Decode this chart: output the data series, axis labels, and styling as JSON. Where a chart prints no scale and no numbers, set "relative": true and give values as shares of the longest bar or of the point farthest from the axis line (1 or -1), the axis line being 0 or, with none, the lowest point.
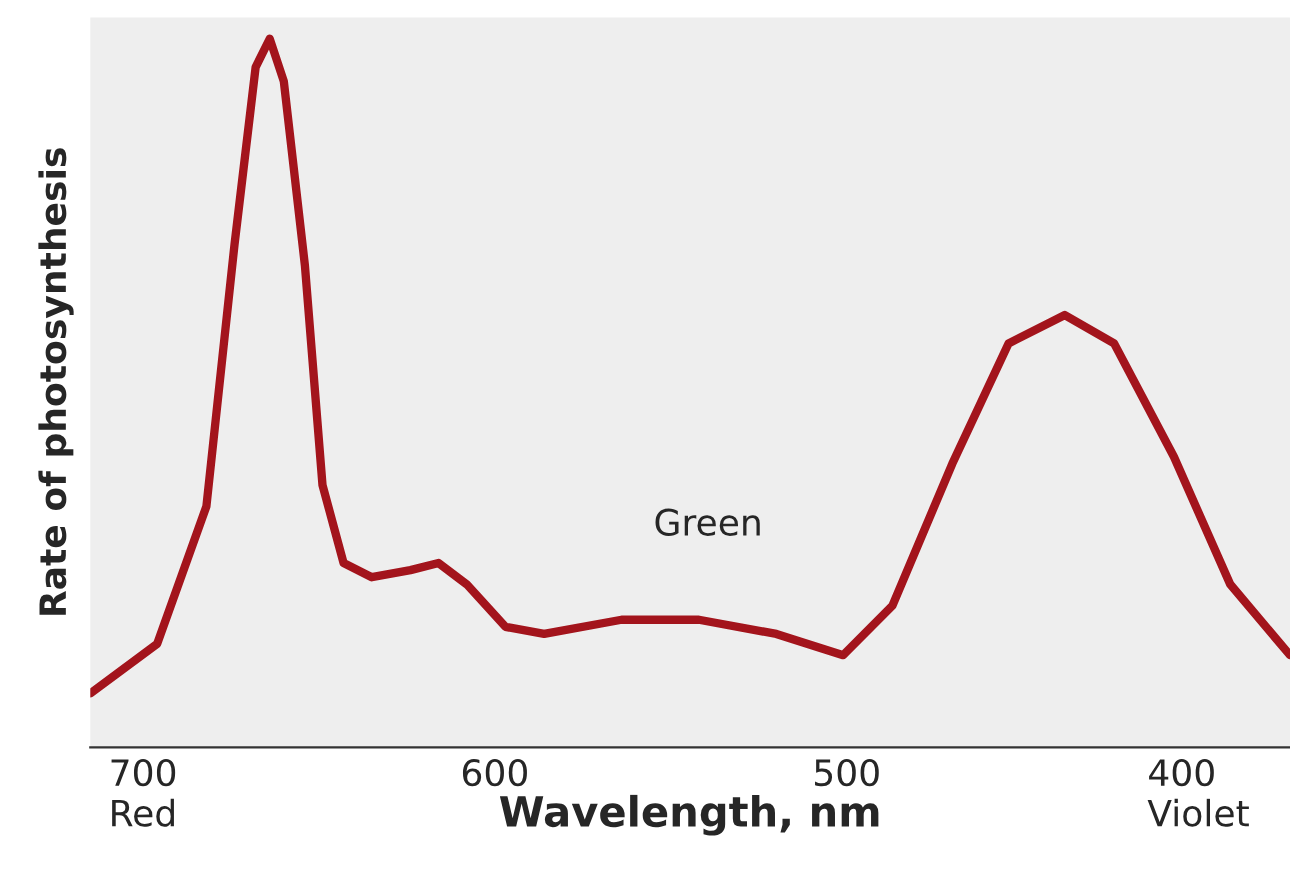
{
  "chart_data": {
    "type": "line",
    "relative": true,
    "xlabel": "Wavelength, nm",
    "ylabel": "Rate of photosynthesis",
    "xlim": [
      715,
      374
    ],
    "xticks": [
      {
        "value": 700,
        "label": "700\nRed"
      },
      600,
      500,
      {
        "value": 400,
        "label": "400\nViolet"
      }
    ],
    "x": [
      715,
      696,
      682,
      674,
      668,
      664,
      660,
      654,
      649,
      643,
      635,
      624,
      616,
      608,
      597,
      586,
      564,
      542,
      520,
      501,
      487,
      470,
      454,
      438,
      424,
      407,
      391,
      374
    ],
    "series": [
      {
        "color": "#a3141c",
        "values": [
          0.076,
          0.146,
          0.34,
          0.71,
          0.96,
          1.0,
          0.94,
          0.68,
          0.37,
          0.26,
          0.24,
          0.25,
          0.26,
          0.23,
          0.17,
          0.16,
          0.18,
          0.18,
          0.16,
          0.13,
          0.2,
          0.4,
          0.57,
          0.61,
          0.57,
          0.41,
          0.23,
          0.13
        ]
      }
    ],
    "annotations": [
      "Green"
    ],
    "grid": false,
    "legend": false,
    "marker": "none",
    "line_style": "solid"
  }
}
